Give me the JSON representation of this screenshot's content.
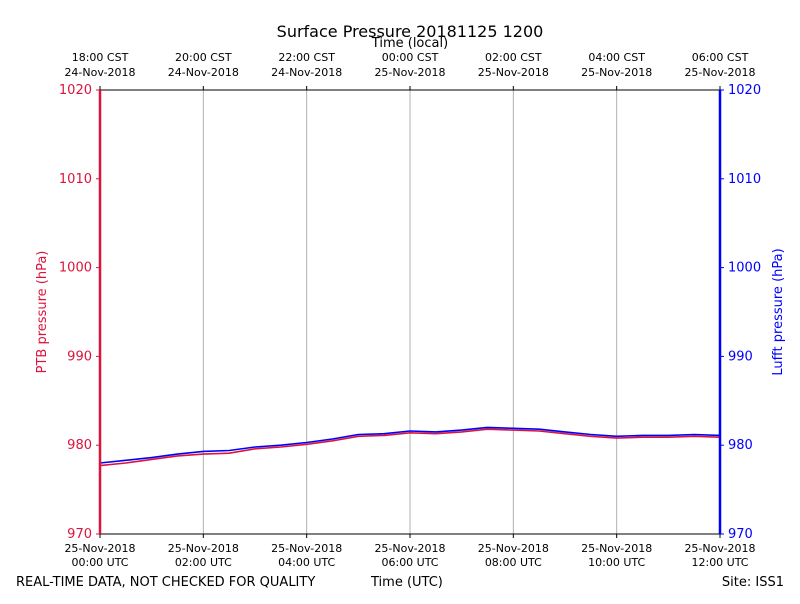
{
  "chart_data": {
    "type": "line",
    "title": "Surface Pressure 20181125 1200",
    "xlabel_bottom": "Time (UTC)",
    "xlabel_top": "Time (local)",
    "ylabel_left": "PTB pressure (hPa)",
    "ylabel_right": "Lufft pressure (hPa)",
    "ylim": [
      970,
      1020
    ],
    "y_ticks": [
      "970",
      "980",
      "990",
      "1000",
      "1010",
      "1020"
    ],
    "x_range": [
      "2018-11-25 00:00 UTC",
      "2018-11-25 12:00 UTC"
    ],
    "x_ticks_bottom": [
      {
        "date": "25-Nov-2018",
        "time": "00:00 UTC"
      },
      {
        "date": "25-Nov-2018",
        "time": "02:00 UTC"
      },
      {
        "date": "25-Nov-2018",
        "time": "04:00 UTC"
      },
      {
        "date": "25-Nov-2018",
        "time": "06:00 UTC"
      },
      {
        "date": "25-Nov-2018",
        "time": "08:00 UTC"
      },
      {
        "date": "25-Nov-2018",
        "time": "10:00 UTC"
      },
      {
        "date": "25-Nov-2018",
        "time": "12:00 UTC"
      }
    ],
    "x_ticks_top": [
      {
        "time": "18:00 CST",
        "date": "24-Nov-2018"
      },
      {
        "time": "20:00 CST",
        "date": "24-Nov-2018"
      },
      {
        "time": "22:00 CST",
        "date": "24-Nov-2018"
      },
      {
        "time": "00:00 CST",
        "date": "25-Nov-2018"
      },
      {
        "time": "02:00 CST",
        "date": "25-Nov-2018"
      },
      {
        "time": "04:00 CST",
        "date": "25-Nov-2018"
      },
      {
        "time": "06:00 CST",
        "date": "25-Nov-2018"
      }
    ],
    "grid": "vertical",
    "series": [
      {
        "name": "PTB pressure (hPa)",
        "axis": "left",
        "color": "#dc143c",
        "x_hours_utc": [
          0,
          0.5,
          1,
          1.5,
          2,
          2.5,
          3,
          3.5,
          4,
          4.5,
          5,
          5.5,
          6,
          6.5,
          7,
          7.5,
          8,
          8.5,
          9,
          9.5,
          10,
          10.5,
          11,
          11.5,
          12
        ],
        "values": [
          977.7,
          978.0,
          978.4,
          978.8,
          979.0,
          979.1,
          979.6,
          979.8,
          980.1,
          980.5,
          981.0,
          981.1,
          981.4,
          981.3,
          981.5,
          981.8,
          981.7,
          981.6,
          981.3,
          981.0,
          980.8,
          980.9,
          980.9,
          981.0,
          980.9
        ]
      },
      {
        "name": "Lufft pressure (hPa)",
        "axis": "right",
        "color": "#0000ff",
        "x_hours_utc": [
          0,
          0.5,
          1,
          1.5,
          2,
          2.5,
          3,
          3.5,
          4,
          4.5,
          5,
          5.5,
          6,
          6.5,
          7,
          7.5,
          8,
          8.5,
          9,
          9.5,
          10,
          10.5,
          11,
          11.5,
          12
        ],
        "values": [
          978.0,
          978.3,
          978.6,
          979.0,
          979.3,
          979.4,
          979.8,
          980.0,
          980.3,
          980.7,
          981.2,
          981.3,
          981.6,
          981.5,
          981.7,
          982.0,
          981.9,
          981.8,
          981.5,
          981.2,
          981.0,
          981.1,
          981.1,
          981.2,
          981.1
        ]
      }
    ]
  },
  "footer": {
    "quality_note": "REAL-TIME DATA, NOT CHECKED FOR QUALITY",
    "xlabel": "Time (UTC)",
    "site": "Site: ISS1"
  }
}
